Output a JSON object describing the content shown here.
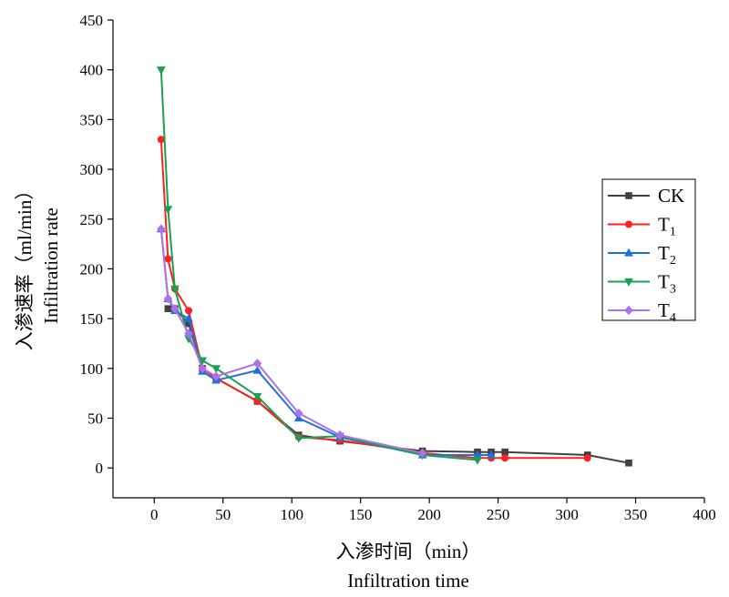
{
  "chart_data": {
    "type": "line",
    "xlabel_cn": "入渗时间（min）",
    "xlabel_en": "Infiltration time",
    "ylabel_cn": "入渗速率（ml/min）",
    "ylabel_en": "Infiltration rate",
    "xlim": [
      -30,
      400
    ],
    "ylim": [
      -30,
      450
    ],
    "xticks": [
      0,
      50,
      100,
      150,
      200,
      250,
      300,
      350,
      400
    ],
    "yticks": [
      0,
      50,
      100,
      150,
      200,
      250,
      300,
      350,
      400,
      450
    ],
    "grid": false,
    "legend_position": "right",
    "series": [
      {
        "name": "CK",
        "sub": "",
        "color": "#404040",
        "marker": "square",
        "x": [
          10,
          15,
          25,
          35,
          45,
          75,
          105,
          135,
          195,
          235,
          245,
          255,
          315,
          345
        ],
        "y": [
          160,
          160,
          145,
          100,
          90,
          67,
          33,
          27,
          17,
          16,
          16,
          16,
          13,
          5
        ]
      },
      {
        "name": "T",
        "sub": "1",
        "color": "#ff2020",
        "marker": "circle",
        "x": [
          5,
          10,
          15,
          25,
          35,
          45,
          75,
          105,
          135,
          195,
          235,
          245,
          255,
          315
        ],
        "y": [
          330,
          210,
          180,
          158,
          100,
          90,
          67,
          31,
          28,
          15,
          10,
          10,
          10,
          10
        ]
      },
      {
        "name": "T",
        "sub": "2",
        "color": "#1f6fe0",
        "marker": "triangle-up",
        "x": [
          5,
          10,
          15,
          25,
          35,
          45,
          75,
          105,
          135,
          195,
          235,
          245
        ],
        "y": [
          240,
          170,
          158,
          150,
          97,
          88,
          98,
          50,
          31,
          13,
          13,
          13
        ]
      },
      {
        "name": "T",
        "sub": "3",
        "color": "#1aa050",
        "marker": "triangle-down",
        "x": [
          5,
          10,
          15,
          25,
          35,
          45,
          75,
          105,
          135,
          195,
          235
        ],
        "y": [
          400,
          260,
          180,
          130,
          108,
          100,
          72,
          30,
          32,
          13,
          8
        ]
      },
      {
        "name": "T",
        "sub": "4",
        "color": "#b070e8",
        "marker": "diamond",
        "x": [
          5,
          10,
          15,
          25,
          35,
          45,
          75,
          105,
          135,
          195
        ],
        "y": [
          240,
          170,
          160,
          135,
          100,
          92,
          105,
          55,
          33,
          15
        ]
      }
    ]
  }
}
